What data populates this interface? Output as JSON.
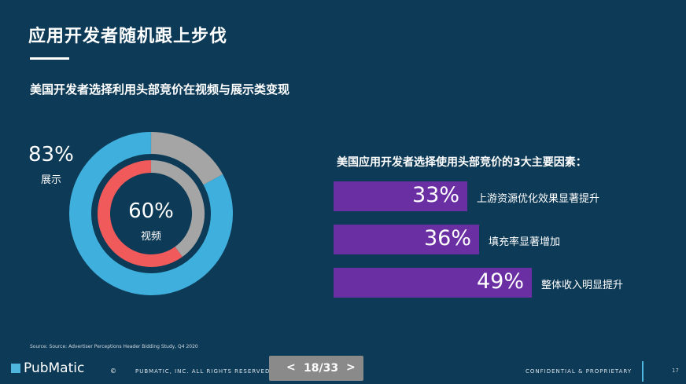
{
  "header": {
    "title": "应用开发者随机跟上步伐"
  },
  "chart_data": [
    {
      "type": "donut",
      "title": "美国开发者选择利用头部竞价在视频与展示类变现",
      "series": [
        {
          "name": "展示",
          "value": 83,
          "label": "83%",
          "color": "#3fb0dd",
          "remainder_color": "#a5a5a5"
        },
        {
          "name": "视频",
          "value": 60,
          "label": "60%",
          "color": "#f05a5a",
          "remainder_color": "#a5a5a5"
        }
      ]
    },
    {
      "type": "bar",
      "title": "美国应用开发者选择使用头部竞价的3大主要因素：",
      "categories": [
        "上游资源优化效果显著提升",
        "填充率显著增加",
        "整体收入明显提升"
      ],
      "values": [
        33,
        36,
        49
      ],
      "value_labels": [
        "33%",
        "36%",
        "49%"
      ],
      "color": "#6a2fa3"
    }
  ],
  "source": "Source:  Source:  Advertiser  Perceptions  Header  Bidding  Study,  Q4  2020",
  "footer": {
    "logo": "PubMatic",
    "copyright_symbol": "©",
    "copyright": "PUBMATIC, INC. ALL RIGHTS RESERVED.",
    "pager": {
      "prev": "<",
      "text": "18/33",
      "next": ">"
    },
    "confidential": "CONFIDENTIAL & PROPRIETARY",
    "page": "17"
  },
  "colors": {
    "background": "#0d3a56",
    "accent_blue": "#3fb0dd",
    "accent_red": "#f05a5a",
    "accent_gray": "#a5a5a5",
    "bar_purple": "#6a2fa3"
  }
}
